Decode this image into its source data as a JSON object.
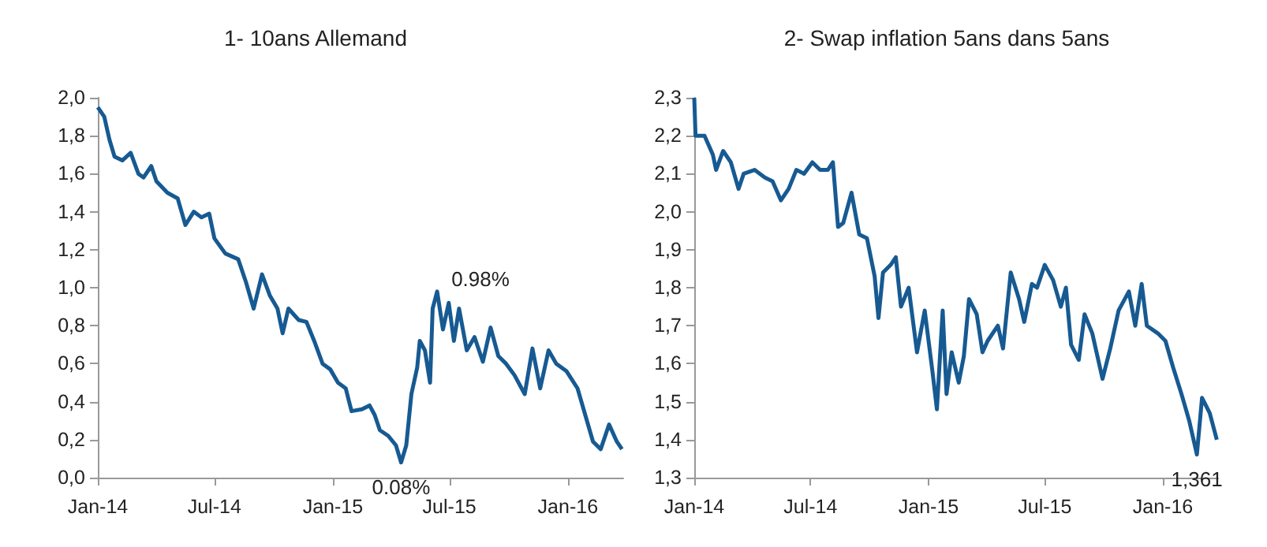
{
  "chart_data": [
    {
      "type": "line",
      "title": "1- 10ans Allemand",
      "color": "#175a92",
      "x": [
        "2014-01-01",
        "2014-01-11",
        "2014-01-19",
        "2014-01-27",
        "2014-02-08",
        "2014-02-21",
        "2014-03-05",
        "2014-03-13",
        "2014-03-25",
        "2014-04-02",
        "2014-04-19",
        "2014-05-05",
        "2014-05-17",
        "2014-05-30",
        "2014-06-11",
        "2014-06-23",
        "2014-07-01",
        "2014-07-18",
        "2014-08-07",
        "2014-08-19",
        "2014-08-31",
        "2014-09-13",
        "2014-09-25",
        "2014-10-07",
        "2014-10-15",
        "2014-10-24",
        "2014-11-09",
        "2014-11-21",
        "2014-12-03",
        "2014-12-16",
        "2014-12-28",
        "2015-01-09",
        "2015-01-21",
        "2015-01-30",
        "2015-02-15",
        "2015-02-27",
        "2015-03-07",
        "2015-03-15",
        "2015-03-28",
        "2015-04-09",
        "2015-04-17",
        "2015-04-25",
        "2015-05-03",
        "2015-05-12",
        "2015-05-16",
        "2015-05-24",
        "2015-06-01",
        "2015-06-05",
        "2015-06-12",
        "2015-06-21",
        "2015-06-30",
        "2015-07-08",
        "2015-07-16",
        "2015-07-28",
        "2015-08-09",
        "2015-08-22",
        "2015-09-03",
        "2015-09-15",
        "2015-09-27",
        "2015-10-10",
        "2015-10-26",
        "2015-11-07",
        "2015-11-19",
        "2015-12-02",
        "2015-12-14",
        "2015-12-30",
        "2016-01-16",
        "2016-01-28",
        "2016-02-09",
        "2016-02-21",
        "2016-03-05",
        "2016-03-17",
        "2016-03-25"
      ],
      "values": [
        1.95,
        1.9,
        1.78,
        1.69,
        1.67,
        1.71,
        1.6,
        1.58,
        1.64,
        1.56,
        1.5,
        1.47,
        1.33,
        1.4,
        1.37,
        1.39,
        1.26,
        1.18,
        1.15,
        1.03,
        0.89,
        1.07,
        0.96,
        0.89,
        0.76,
        0.89,
        0.83,
        0.82,
        0.72,
        0.6,
        0.57,
        0.5,
        0.47,
        0.35,
        0.36,
        0.38,
        0.33,
        0.25,
        0.22,
        0.17,
        0.08,
        0.17,
        0.44,
        0.58,
        0.72,
        0.67,
        0.5,
        0.89,
        0.98,
        0.78,
        0.92,
        0.72,
        0.89,
        0.67,
        0.74,
        0.61,
        0.79,
        0.64,
        0.6,
        0.54,
        0.44,
        0.68,
        0.47,
        0.67,
        0.6,
        0.56,
        0.47,
        0.33,
        0.19,
        0.15,
        0.28,
        0.19,
        0.15
      ],
      "xlim": [
        "2014-01-01",
        "2016-03-27"
      ],
      "xticks": [
        {
          "value": "2014-01-01",
          "label": "Jan-14"
        },
        {
          "value": "2014-07-01",
          "label": "Jul-14"
        },
        {
          "value": "2015-01-01",
          "label": "Jan-15"
        },
        {
          "value": "2015-07-01",
          "label": "Jul-15"
        },
        {
          "value": "2016-01-01",
          "label": "Jan-16"
        }
      ],
      "ylim": [
        0,
        2
      ],
      "yticks": [
        {
          "value": 0,
          "label": "0,0"
        },
        {
          "value": 0.2,
          "label": "0,2"
        },
        {
          "value": 0.4,
          "label": "0,4"
        },
        {
          "value": 0.6,
          "label": "0,6"
        },
        {
          "value": 0.8,
          "label": "0,8"
        },
        {
          "value": 1,
          "label": "1,0"
        },
        {
          "value": 1.2,
          "label": "1,2"
        },
        {
          "value": 1.4,
          "label": "1,4"
        },
        {
          "value": 1.6,
          "label": "1,6"
        },
        {
          "value": 1.8,
          "label": "1,8"
        },
        {
          "value": 2,
          "label": "2,0"
        }
      ],
      "annotations": [
        {
          "text": "0.98%",
          "x": "2015-06-12",
          "y": 0.98
        },
        {
          "text": "0.08%",
          "x": "2015-04-17",
          "y": 0.08
        }
      ]
    },
    {
      "type": "line",
      "title": "2- Swap inflation 5ans dans 5ans",
      "color": "#175a92",
      "x": [
        "2014-01-01",
        "2014-01-03",
        "2014-01-17",
        "2014-01-30",
        "2014-02-04",
        "2014-02-15",
        "2014-02-27",
        "2014-03-11",
        "2014-03-19",
        "2014-04-05",
        "2014-04-21",
        "2014-05-03",
        "2014-05-16",
        "2014-05-28",
        "2014-06-09",
        "2014-06-21",
        "2014-07-04",
        "2014-07-16",
        "2014-07-28",
        "2014-08-05",
        "2014-08-13",
        "2014-08-21",
        "2014-09-03",
        "2014-09-15",
        "2014-09-27",
        "2014-10-09",
        "2014-10-15",
        "2014-10-22",
        "2014-11-03",
        "2014-11-11",
        "2014-11-19",
        "2014-12-01",
        "2014-12-14",
        "2014-12-26",
        "2015-01-07",
        "2015-01-14",
        "2015-01-23",
        "2015-01-29",
        "2015-02-06",
        "2015-02-17",
        "2015-02-25",
        "2015-03-05",
        "2015-03-17",
        "2015-03-26",
        "2015-04-03",
        "2015-04-19",
        "2015-04-27",
        "2015-05-09",
        "2015-05-22",
        "2015-05-30",
        "2015-06-11",
        "2015-06-19",
        "2015-07-01",
        "2015-07-14",
        "2015-07-26",
        "2015-08-03",
        "2015-08-11",
        "2015-08-23",
        "2015-09-01",
        "2015-09-13",
        "2015-09-29",
        "2015-10-11",
        "2015-10-24",
        "2015-11-09",
        "2015-11-19",
        "2015-11-29",
        "2015-12-07",
        "2015-12-24",
        "2016-01-05",
        "2016-01-17",
        "2016-01-30",
        "2016-02-11",
        "2016-02-23",
        "2016-03-02",
        "2016-03-14",
        "2016-03-25"
      ],
      "values": [
        2.3,
        2.2,
        2.2,
        2.15,
        2.11,
        2.16,
        2.13,
        2.06,
        2.1,
        2.11,
        2.09,
        2.08,
        2.03,
        2.06,
        2.11,
        2.1,
        2.13,
        2.11,
        2.11,
        2.13,
        1.96,
        1.97,
        2.05,
        1.94,
        1.93,
        1.83,
        1.72,
        1.84,
        1.86,
        1.88,
        1.75,
        1.8,
        1.63,
        1.74,
        1.58,
        1.48,
        1.74,
        1.52,
        1.63,
        1.55,
        1.62,
        1.77,
        1.73,
        1.63,
        1.66,
        1.7,
        1.64,
        1.84,
        1.77,
        1.71,
        1.81,
        1.8,
        1.86,
        1.82,
        1.75,
        1.8,
        1.65,
        1.61,
        1.73,
        1.68,
        1.56,
        1.64,
        1.74,
        1.79,
        1.7,
        1.81,
        1.7,
        1.68,
        1.66,
        1.59,
        1.52,
        1.45,
        1.361,
        1.51,
        1.47,
        1.4
      ],
      "xlim": [
        "2014-01-01",
        "2016-03-27"
      ],
      "xticks": [
        {
          "value": "2014-01-01",
          "label": "Jan-14"
        },
        {
          "value": "2014-07-01",
          "label": "Jul-14"
        },
        {
          "value": "2015-01-01",
          "label": "Jan-15"
        },
        {
          "value": "2015-07-01",
          "label": "Jul-15"
        },
        {
          "value": "2016-01-01",
          "label": "Jan-16"
        }
      ],
      "ylim": [
        1.3,
        2.3
      ],
      "yticks": [
        {
          "value": 1.3,
          "label": "1,3"
        },
        {
          "value": 1.4,
          "label": "1,4"
        },
        {
          "value": 1.5,
          "label": "1,5"
        },
        {
          "value": 1.6,
          "label": "1,6"
        },
        {
          "value": 1.7,
          "label": "1,7"
        },
        {
          "value": 1.8,
          "label": "1,8"
        },
        {
          "value": 1.9,
          "label": "1,9"
        },
        {
          "value": 2,
          "label": "2,0"
        },
        {
          "value": 2.1,
          "label": "2,1"
        },
        {
          "value": 2.2,
          "label": "2,2"
        },
        {
          "value": 2.3,
          "label": "2,3"
        }
      ],
      "annotations": [
        {
          "text": "1,361",
          "x": "2016-02-23",
          "y": 1.361
        }
      ]
    }
  ]
}
